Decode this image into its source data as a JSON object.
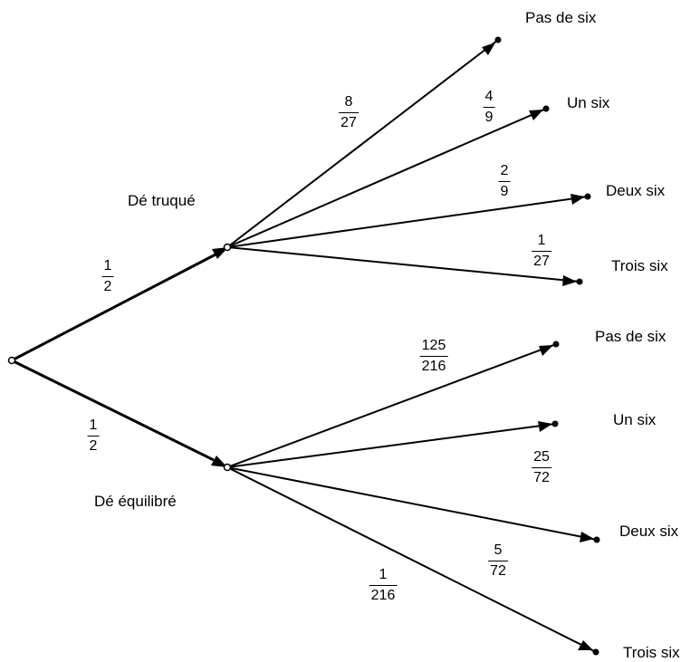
{
  "root": {
    "branches": [
      {
        "name": "Dé truqué",
        "prob": {
          "num": "1",
          "den": "2"
        },
        "outcomes": [
          {
            "label": "Pas de six",
            "prob": {
              "num": "8",
              "den": "27"
            }
          },
          {
            "label": "Un six",
            "prob": {
              "num": "4",
              "den": "9"
            }
          },
          {
            "label": "Deux six",
            "prob": {
              "num": "2",
              "den": "9"
            }
          },
          {
            "label": "Trois six",
            "prob": {
              "num": "1",
              "den": "27"
            }
          }
        ]
      },
      {
        "name": "Dé équilibré",
        "prob": {
          "num": "1",
          "den": "2"
        },
        "outcomes": [
          {
            "label": "Pas de six",
            "prob": {
              "num": "125",
              "den": "216"
            }
          },
          {
            "label": "Un six",
            "prob": {
              "num": "25",
              "den": "72"
            }
          },
          {
            "label": "Deux six",
            "prob": {
              "num": "5",
              "den": "72"
            }
          },
          {
            "label": "Trois six",
            "prob": {
              "num": "1",
              "den": "216"
            }
          }
        ]
      }
    ]
  }
}
